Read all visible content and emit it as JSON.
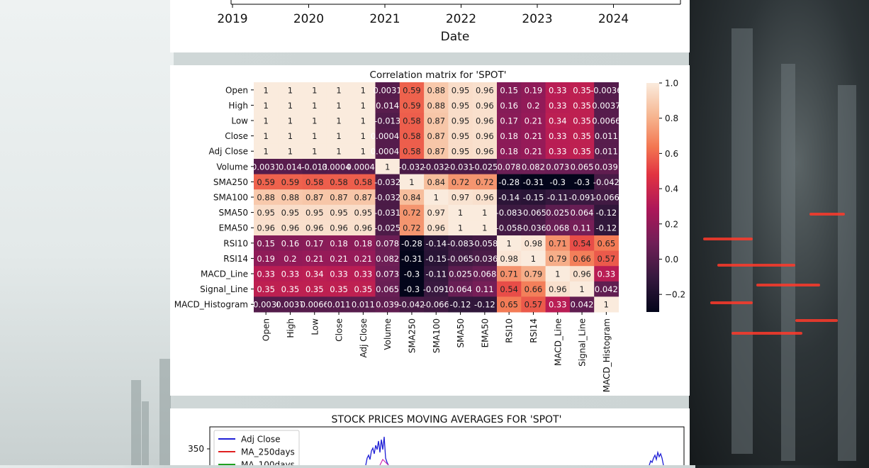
{
  "top_chart": {
    "xlabel": "Date",
    "x_ticks": [
      "2019",
      "2020",
      "2021",
      "2022",
      "2023",
      "2024"
    ]
  },
  "heatmap": {
    "title": "Correlation matrix for 'SPOT'",
    "labels": [
      "Open",
      "High",
      "Low",
      "Close",
      "Adj Close",
      "Volume",
      "SMA250",
      "SMA100",
      "SMA50",
      "EMA50",
      "RSI10",
      "RSI14",
      "MACD_Line",
      "Signal_Line",
      "MACD_Histogram"
    ],
    "display": [
      [
        "1",
        "1",
        "1",
        "1",
        "1",
        "0.0031",
        "0.59",
        "0.88",
        "0.95",
        "0.96",
        "0.15",
        "0.19",
        "0.33",
        "0.35",
        "-0.0036"
      ],
      [
        "1",
        "1",
        "1",
        "1",
        "1",
        "0.014",
        "0.59",
        "0.88",
        "0.95",
        "0.96",
        "0.16",
        "0.2",
        "0.33",
        "0.35",
        "0.0037"
      ],
      [
        "1",
        "1",
        "1",
        "1",
        "1",
        "-0.013",
        "0.58",
        "0.87",
        "0.95",
        "0.96",
        "0.17",
        "0.21",
        "0.34",
        "0.35",
        "0.0066"
      ],
      [
        "1",
        "1",
        "1",
        "1",
        "1",
        "0.00046",
        "0.58",
        "0.87",
        "0.95",
        "0.96",
        "0.18",
        "0.21",
        "0.33",
        "0.35",
        "0.011"
      ],
      [
        "1",
        "1",
        "1",
        "1",
        "1",
        "0.00046",
        "0.58",
        "0.87",
        "0.95",
        "0.96",
        "0.18",
        "0.21",
        "0.33",
        "0.35",
        "0.011"
      ],
      [
        "0.0031",
        "0.014",
        "-0.013",
        "0.00046",
        "0.00046",
        "1",
        "-0.032",
        "-0.032",
        "-0.031",
        "-0.025",
        "0.078",
        "0.082",
        "0.073",
        "0.065",
        "0.039"
      ],
      [
        "0.59",
        "0.59",
        "0.58",
        "0.58",
        "0.58",
        "-0.032",
        "1",
        "0.84",
        "0.72",
        "0.72",
        "-0.28",
        "-0.31",
        "-0.3",
        "-0.3",
        "-0.042"
      ],
      [
        "0.88",
        "0.88",
        "0.87",
        "0.87",
        "0.87",
        "-0.032",
        "0.84",
        "1",
        "0.97",
        "0.96",
        "-0.14",
        "-0.15",
        "-0.11",
        "-0.091",
        "-0.066"
      ],
      [
        "0.95",
        "0.95",
        "0.95",
        "0.95",
        "0.95",
        "-0.031",
        "0.72",
        "0.97",
        "1",
        "1",
        "-0.083",
        "-0.065",
        "0.025",
        "0.064",
        "-0.12"
      ],
      [
        "0.96",
        "0.96",
        "0.96",
        "0.96",
        "0.96",
        "-0.025",
        "0.72",
        "0.96",
        "1",
        "1",
        "-0.058",
        "-0.036",
        "0.068",
        "0.11",
        "-0.12"
      ],
      [
        "0.15",
        "0.16",
        "0.17",
        "0.18",
        "0.18",
        "0.078",
        "-0.28",
        "-0.14",
        "-0.083",
        "-0.058",
        "1",
        "0.98",
        "0.71",
        "0.54",
        "0.65"
      ],
      [
        "0.19",
        "0.2",
        "0.21",
        "0.21",
        "0.21",
        "0.082",
        "-0.31",
        "-0.15",
        "-0.065",
        "-0.036",
        "0.98",
        "1",
        "0.79",
        "0.66",
        "0.57"
      ],
      [
        "0.33",
        "0.33",
        "0.34",
        "0.33",
        "0.33",
        "0.073",
        "-0.3",
        "-0.11",
        "0.025",
        "0.068",
        "0.71",
        "0.79",
        "1",
        "0.96",
        "0.33"
      ],
      [
        "0.35",
        "0.35",
        "0.35",
        "0.35",
        "0.35",
        "0.065",
        "-0.3",
        "-0.091",
        "0.064",
        "0.11",
        "0.54",
        "0.66",
        "0.96",
        "1",
        "0.042"
      ],
      [
        "-0.0036",
        "0.0037",
        "0.0066",
        "0.011",
        "0.011",
        "0.039",
        "-0.042",
        "-0.066",
        "-0.12",
        "-0.12",
        "0.65",
        "0.57",
        "0.33",
        "0.042",
        "1"
      ]
    ],
    "colorbar_ticks": [
      "1.0",
      "0.8",
      "0.6",
      "0.4",
      "0.2",
      "0.0",
      "−0.2"
    ],
    "colorbar_range": [
      -0.3,
      1.0
    ],
    "colormap": "rocket"
  },
  "bottom_chart": {
    "title": "STOCK PRICES MOVING AVERAGES FOR 'SPOT'",
    "y_tick": "350",
    "legend": [
      {
        "label": "Adj Close",
        "color": "#1f1fd6"
      },
      {
        "label": "MA_250days",
        "color": "#e02020"
      },
      {
        "label": "MA_100days",
        "color": "#20a020"
      }
    ]
  },
  "chart_data": [
    {
      "type": "heatmap",
      "title": "Correlation matrix for 'SPOT'",
      "rows": [
        "Open",
        "High",
        "Low",
        "Close",
        "Adj Close",
        "Volume",
        "SMA250",
        "SMA100",
        "SMA50",
        "EMA50",
        "RSI10",
        "RSI14",
        "MACD_Line",
        "Signal_Line",
        "MACD_Histogram"
      ],
      "columns": [
        "Open",
        "High",
        "Low",
        "Close",
        "Adj Close",
        "Volume",
        "SMA250",
        "SMA100",
        "SMA50",
        "EMA50",
        "RSI10",
        "RSI14",
        "MACD_Line",
        "Signal_Line",
        "MACD_Histogram"
      ],
      "values": [
        [
          1,
          1,
          1,
          1,
          1,
          0.0031,
          0.59,
          0.88,
          0.95,
          0.96,
          0.15,
          0.19,
          0.33,
          0.35,
          -0.0036
        ],
        [
          1,
          1,
          1,
          1,
          1,
          0.014,
          0.59,
          0.88,
          0.95,
          0.96,
          0.16,
          0.2,
          0.33,
          0.35,
          0.0037
        ],
        [
          1,
          1,
          1,
          1,
          1,
          -0.013,
          0.58,
          0.87,
          0.95,
          0.96,
          0.17,
          0.21,
          0.34,
          0.35,
          0.0066
        ],
        [
          1,
          1,
          1,
          1,
          1,
          0.00046,
          0.58,
          0.87,
          0.95,
          0.96,
          0.18,
          0.21,
          0.33,
          0.35,
          0.011
        ],
        [
          1,
          1,
          1,
          1,
          1,
          0.00046,
          0.58,
          0.87,
          0.95,
          0.96,
          0.18,
          0.21,
          0.33,
          0.35,
          0.011
        ],
        [
          0.0031,
          0.014,
          -0.013,
          0.00046,
          0.00046,
          1,
          -0.032,
          -0.032,
          -0.031,
          -0.025,
          0.078,
          0.082,
          0.073,
          0.065,
          0.039
        ],
        [
          0.59,
          0.59,
          0.58,
          0.58,
          0.58,
          -0.032,
          1,
          0.84,
          0.72,
          0.72,
          -0.28,
          -0.31,
          -0.3,
          -0.3,
          -0.042
        ],
        [
          0.88,
          0.88,
          0.87,
          0.87,
          0.87,
          -0.032,
          0.84,
          1,
          0.97,
          0.96,
          -0.14,
          -0.15,
          -0.11,
          -0.091,
          -0.066
        ],
        [
          0.95,
          0.95,
          0.95,
          0.95,
          0.95,
          -0.031,
          0.72,
          0.97,
          1,
          1,
          -0.083,
          -0.065,
          0.025,
          0.064,
          -0.12
        ],
        [
          0.96,
          0.96,
          0.96,
          0.96,
          0.96,
          -0.025,
          0.72,
          0.96,
          1,
          1,
          -0.058,
          -0.036,
          0.068,
          0.11,
          -0.12
        ],
        [
          0.15,
          0.16,
          0.17,
          0.18,
          0.18,
          0.078,
          -0.28,
          -0.14,
          -0.083,
          -0.058,
          1,
          0.98,
          0.71,
          0.54,
          0.65
        ],
        [
          0.19,
          0.2,
          0.21,
          0.21,
          0.21,
          0.082,
          -0.31,
          -0.15,
          -0.065,
          -0.036,
          0.98,
          1,
          0.79,
          0.66,
          0.57
        ],
        [
          0.33,
          0.33,
          0.34,
          0.33,
          0.33,
          0.073,
          -0.3,
          -0.11,
          0.025,
          0.068,
          0.71,
          0.79,
          1,
          0.96,
          0.33
        ],
        [
          0.35,
          0.35,
          0.35,
          0.35,
          0.35,
          0.065,
          -0.3,
          -0.091,
          0.064,
          0.11,
          0.54,
          0.66,
          0.96,
          1,
          0.042
        ],
        [
          -0.0036,
          0.0037,
          0.0066,
          0.011,
          0.011,
          0.039,
          -0.042,
          -0.066,
          -0.12,
          -0.12,
          0.65,
          0.57,
          0.33,
          0.042,
          1
        ]
      ],
      "color_range": [
        -0.3,
        1.0
      ],
      "legend": "colorbar-right"
    },
    {
      "type": "line",
      "title": "STOCK PRICES MOVING AVERAGES FOR 'SPOT'",
      "series": [
        {
          "name": "Adj Close"
        },
        {
          "name": "MA_250days"
        },
        {
          "name": "MA_100days"
        }
      ],
      "legend": "top-left"
    }
  ]
}
